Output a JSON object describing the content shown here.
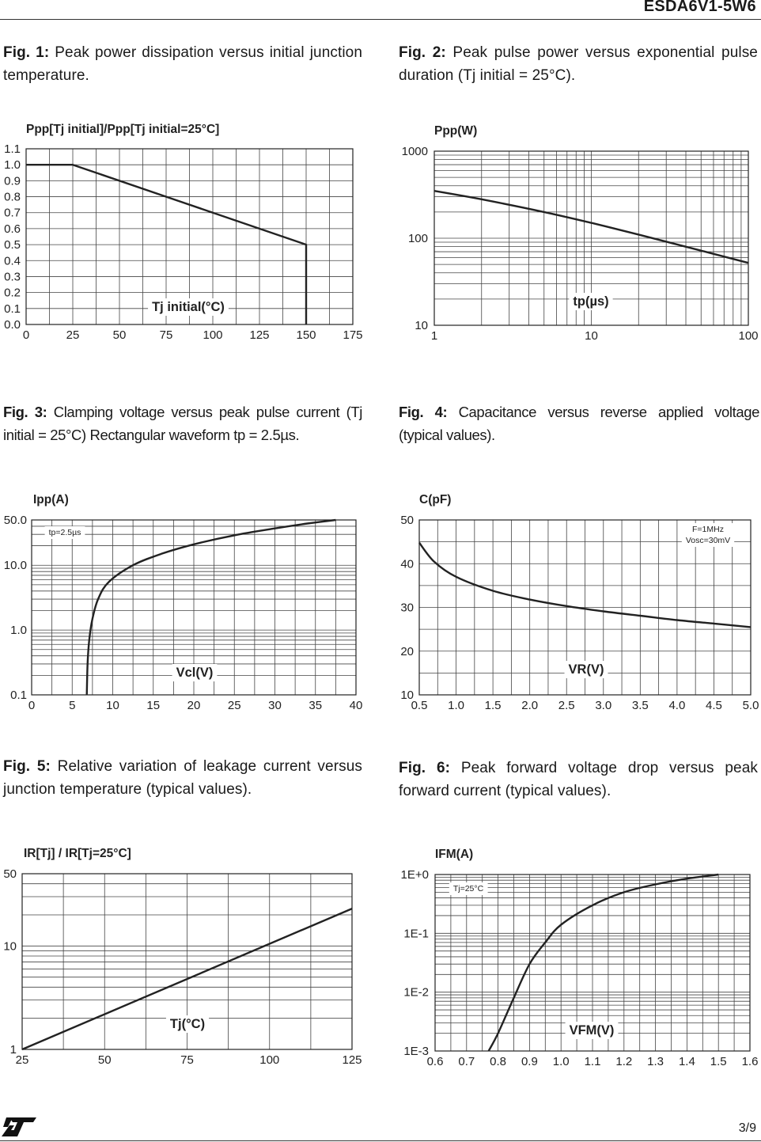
{
  "header": {
    "title": "ESDA6V1-5W6"
  },
  "footer": {
    "page": "3/9",
    "logo": "ST"
  },
  "captions": [
    {
      "num": "Fig.  1:",
      "text": " Peak power dissipation versus initial junction temperature."
    },
    {
      "num": "Fig.  2:",
      "text": " Peak pulse power versus exponential pulse duration (Tj initial = 25°C)."
    },
    {
      "num": "Fig. 3:",
      "text": " Clamping voltage versus peak pulse current (Tj initial = 25°C) Rectangular waveform tp = 2.5µs."
    },
    {
      "num": "Fig. 4:",
      "text": " Capacitance versus reverse applied voltage (typical values)."
    },
    {
      "num": "Fig. 5:",
      "text": " Relative variation of leakage current versus junction temperature (typical values)."
    },
    {
      "num": "Fig. 6:",
      "text": " Peak forward voltage drop versus peak forward current (typical values)."
    }
  ],
  "chart_data": [
    {
      "id": "fig1",
      "type": "line",
      "ylabel": "Ppp[Tj initial]/Ppp[Tj initial=25°C]",
      "xlabel": "Tj initial(°C)",
      "xscale": "linear",
      "yscale": "linear",
      "xlim": [
        0,
        175
      ],
      "ylim": [
        0,
        1.1
      ],
      "xticks": [
        0,
        25,
        50,
        75,
        100,
        125,
        150,
        175
      ],
      "xtick_labels": [
        "0",
        "25",
        "50",
        "75",
        "100",
        "125",
        "150",
        "175"
      ],
      "yticks": [
        0,
        0.1,
        0.2,
        0.3,
        0.4,
        0.5,
        0.6,
        0.7,
        0.8,
        0.9,
        1.0,
        1.1
      ],
      "ytick_labels": [
        "0.0",
        "0.1",
        "0.2",
        "0.3",
        "0.4",
        "0.5",
        "0.6",
        "0.7",
        "0.8",
        "0.9",
        "1.0",
        "1.1"
      ],
      "x": [
        0,
        25,
        150,
        150
      ],
      "y": [
        1.0,
        1.0,
        0.5,
        0.0
      ]
    },
    {
      "id": "fig2",
      "type": "line",
      "ylabel": "Ppp(W)",
      "xlabel": "tp(µs)",
      "xscale": "log",
      "yscale": "log",
      "xlim": [
        1,
        100
      ],
      "ylim": [
        10,
        1000
      ],
      "xticks": [
        1,
        10,
        100
      ],
      "xtick_labels": [
        "1",
        "10",
        "100"
      ],
      "yticks": [
        10,
        100,
        1000
      ],
      "ytick_labels": [
        "10",
        "100",
        "1000"
      ],
      "x": [
        1,
        2,
        5,
        10,
        20,
        50,
        100
      ],
      "y": [
        350,
        280,
        200,
        150,
        110,
        72,
        52
      ]
    },
    {
      "id": "fig3",
      "type": "line",
      "ylabel": "Ipp(A)",
      "xlabel": "Vcl(V)",
      "annotation": "tp=2.5µs",
      "xscale": "linear",
      "yscale": "log",
      "xlim": [
        0,
        40
      ],
      "ylim": [
        0.1,
        50
      ],
      "xticks": [
        0,
        5,
        10,
        15,
        20,
        25,
        30,
        35,
        40
      ],
      "xtick_labels": [
        "0",
        "5",
        "10",
        "15",
        "20",
        "25",
        "30",
        "35",
        "40"
      ],
      "yticks": [
        0.1,
        1,
        10,
        50
      ],
      "ytick_labels": [
        "0.1",
        "1.0",
        "10.0",
        "50.0"
      ],
      "x": [
        6.8,
        6.9,
        7.1,
        7.5,
        8.2,
        9.5,
        12.5,
        16,
        20,
        25,
        30,
        34,
        37.5
      ],
      "y": [
        0.1,
        0.3,
        0.7,
        1.5,
        3,
        5.5,
        10,
        15,
        21,
        29,
        37,
        44,
        50
      ]
    },
    {
      "id": "fig4",
      "type": "line",
      "ylabel": "C(pF)",
      "xlabel": "VR(V)",
      "annotation": [
        "F=1MHz",
        "Vosc=30mV"
      ],
      "xscale": "linear",
      "yscale": "linear",
      "xlim": [
        0.5,
        5.0
      ],
      "ylim": [
        10,
        50
      ],
      "xticks": [
        0.5,
        1.0,
        1.5,
        2.0,
        2.5,
        3.0,
        3.5,
        4.0,
        4.5,
        5.0
      ],
      "xtick_labels": [
        "0.5",
        "1.0",
        "1.5",
        "2.0",
        "2.5",
        "3.0",
        "3.5",
        "4.0",
        "4.5",
        "5.0"
      ],
      "yticks": [
        10,
        20,
        30,
        40,
        50
      ],
      "ytick_labels": [
        "10",
        "20",
        "30",
        "40",
        "50"
      ],
      "x": [
        0.5,
        0.7,
        1.0,
        1.5,
        2.0,
        2.5,
        3.0,
        3.5,
        4.0,
        4.5,
        5.0
      ],
      "y": [
        44.8,
        40.5,
        37,
        33.8,
        31.8,
        30.3,
        29.1,
        28.1,
        27.1,
        26.3,
        25.5
      ]
    },
    {
      "id": "fig5",
      "type": "line",
      "ylabel": "IR[Tj] / IR[Tj=25°C]",
      "xlabel": "Tj(°C)",
      "xscale": "linear",
      "yscale": "log",
      "xlim": [
        25,
        125
      ],
      "ylim": [
        1,
        50
      ],
      "xticks": [
        25,
        50,
        75,
        100,
        125
      ],
      "xtick_labels": [
        "25",
        "50",
        "75",
        "100",
        "125"
      ],
      "yticks": [
        1,
        10,
        50
      ],
      "ytick_labels": [
        "1",
        "10",
        "50"
      ],
      "x": [
        25,
        125
      ],
      "y": [
        1,
        23
      ]
    },
    {
      "id": "fig6",
      "type": "line",
      "ylabel": "IFM(A)",
      "xlabel": "VFM(V)",
      "annotation": "Tj=25°C",
      "xscale": "linear",
      "yscale": "log",
      "xlim": [
        0.6,
        1.6
      ],
      "ylim": [
        0.001,
        1
      ],
      "xticks": [
        0.6,
        0.7,
        0.8,
        0.9,
        1.0,
        1.1,
        1.2,
        1.3,
        1.4,
        1.5,
        1.6
      ],
      "xtick_labels": [
        "0.6",
        "0.7",
        "0.8",
        "0.9",
        "1.0",
        "1.1",
        "1.2",
        "1.3",
        "1.4",
        "1.5",
        "1.6"
      ],
      "yticks": [
        0.001,
        0.01,
        0.1,
        1
      ],
      "ytick_labels": [
        "1E-3",
        "1E-2",
        "1E-1",
        "1E+0"
      ],
      "x": [
        0.77,
        0.8,
        0.85,
        0.9,
        0.95,
        1.0,
        1.1,
        1.2,
        1.3,
        1.4,
        1.5
      ],
      "y": [
        0.001,
        0.002,
        0.008,
        0.03,
        0.07,
        0.14,
        0.3,
        0.5,
        0.68,
        0.85,
        1.0
      ]
    }
  ]
}
